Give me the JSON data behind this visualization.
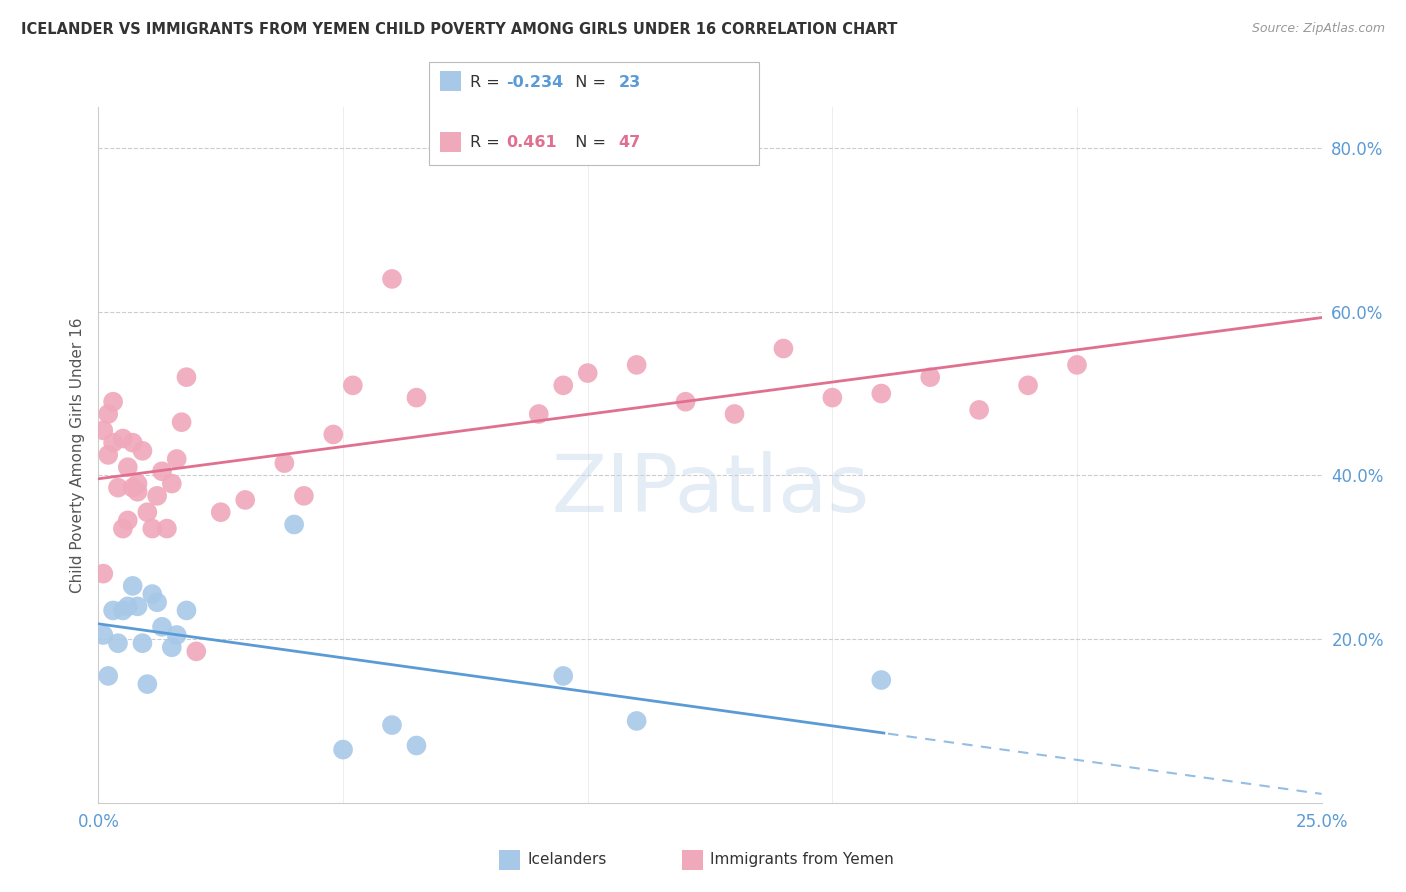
{
  "title": "ICELANDER VS IMMIGRANTS FROM YEMEN CHILD POVERTY AMONG GIRLS UNDER 16 CORRELATION CHART",
  "source": "Source: ZipAtlas.com",
  "ylabel": "Child Poverty Among Girls Under 16",
  "x_min": 0.0,
  "x_max": 0.25,
  "y_min": 0.0,
  "y_max": 0.85,
  "y_ticks": [
    0.2,
    0.4,
    0.6,
    0.8
  ],
  "y_tick_labels": [
    "20.0%",
    "40.0%",
    "60.0%",
    "80.0%"
  ],
  "blue_color": "#a8c8e8",
  "pink_color": "#f0a8bb",
  "blue_line_color": "#5b9bd5",
  "pink_line_color": "#e07090",
  "legend_blue_r": "-0.234",
  "legend_blue_n": "23",
  "legend_pink_r": "0.461",
  "legend_pink_n": "47",
  "blue_label": "Icelanders",
  "pink_label": "Immigrants from Yemen",
  "watermark": "ZIPatlas",
  "background_color": "#ffffff",
  "grid_color": "#cccccc",
  "axis_color": "#cccccc",
  "tick_color": "#5b9bd5",
  "title_color": "#333333",
  "source_color": "#999999",
  "blue_x": [
    0.001,
    0.002,
    0.003,
    0.004,
    0.005,
    0.006,
    0.007,
    0.008,
    0.009,
    0.01,
    0.011,
    0.012,
    0.013,
    0.015,
    0.016,
    0.018,
    0.04,
    0.05,
    0.06,
    0.065,
    0.095,
    0.11,
    0.16
  ],
  "blue_y": [
    0.205,
    0.155,
    0.235,
    0.195,
    0.235,
    0.24,
    0.265,
    0.24,
    0.195,
    0.145,
    0.255,
    0.245,
    0.215,
    0.19,
    0.205,
    0.235,
    0.34,
    0.065,
    0.095,
    0.07,
    0.155,
    0.1,
    0.15
  ],
  "pink_x": [
    0.001,
    0.001,
    0.002,
    0.002,
    0.003,
    0.003,
    0.004,
    0.005,
    0.005,
    0.006,
    0.006,
    0.007,
    0.007,
    0.008,
    0.008,
    0.009,
    0.01,
    0.011,
    0.012,
    0.013,
    0.014,
    0.015,
    0.016,
    0.017,
    0.018,
    0.02,
    0.025,
    0.03,
    0.038,
    0.042,
    0.048,
    0.052,
    0.06,
    0.065,
    0.09,
    0.095,
    0.1,
    0.11,
    0.12,
    0.13,
    0.14,
    0.15,
    0.16,
    0.17,
    0.18,
    0.19,
    0.2
  ],
  "pink_y": [
    0.28,
    0.455,
    0.425,
    0.475,
    0.44,
    0.49,
    0.385,
    0.445,
    0.335,
    0.345,
    0.41,
    0.385,
    0.44,
    0.39,
    0.38,
    0.43,
    0.355,
    0.335,
    0.375,
    0.405,
    0.335,
    0.39,
    0.42,
    0.465,
    0.52,
    0.185,
    0.355,
    0.37,
    0.415,
    0.375,
    0.45,
    0.51,
    0.64,
    0.495,
    0.475,
    0.51,
    0.525,
    0.535,
    0.49,
    0.475,
    0.555,
    0.495,
    0.5,
    0.52,
    0.48,
    0.51,
    0.535
  ]
}
